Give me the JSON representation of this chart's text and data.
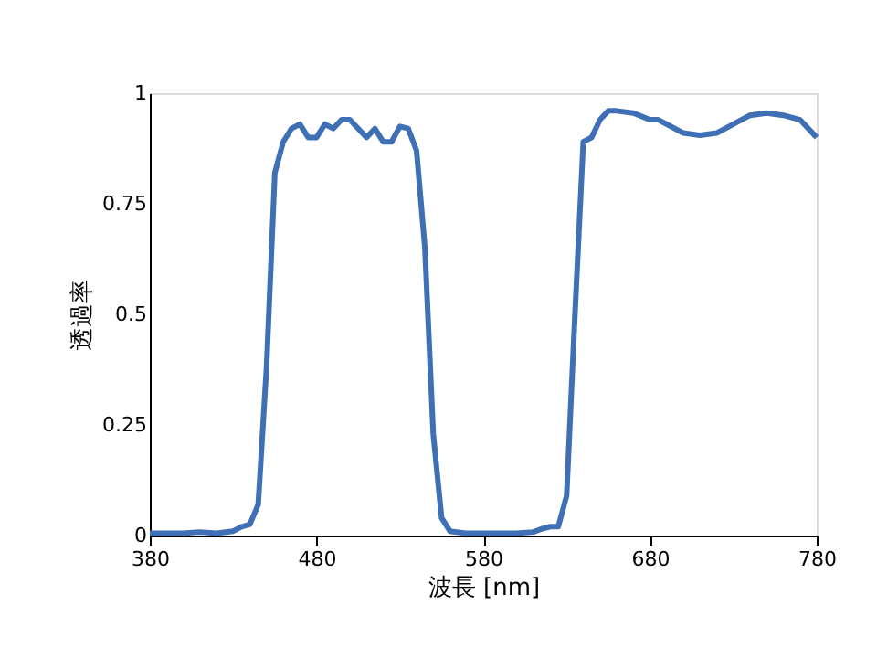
{
  "chart_data": {
    "type": "line",
    "xlabel": "波長 [nm]",
    "ylabel": "透過率",
    "x": [
      380,
      400,
      410,
      420,
      430,
      435,
      440,
      445,
      450,
      455,
      460,
      465,
      470,
      475,
      480,
      485,
      490,
      495,
      500,
      505,
      510,
      515,
      520,
      525,
      530,
      535,
      540,
      545,
      550,
      555,
      560,
      570,
      600,
      610,
      615,
      620,
      625,
      630,
      635,
      640,
      645,
      650,
      655,
      660,
      670,
      680,
      685,
      690,
      700,
      710,
      720,
      730,
      740,
      750,
      760,
      770,
      780
    ],
    "series": [
      {
        "color": "#3f6fb5",
        "values": [
          0.005,
          0.005,
          0.008,
          0.005,
          0.01,
          0.02,
          0.025,
          0.07,
          0.38,
          0.82,
          0.89,
          0.92,
          0.93,
          0.9,
          0.9,
          0.93,
          0.92,
          0.94,
          0.94,
          0.92,
          0.9,
          0.92,
          0.89,
          0.89,
          0.925,
          0.92,
          0.87,
          0.65,
          0.23,
          0.04,
          0.01,
          0.005,
          0.005,
          0.008,
          0.015,
          0.02,
          0.02,
          0.09,
          0.5,
          0.89,
          0.9,
          0.94,
          0.96,
          0.96,
          0.955,
          0.94,
          0.94,
          0.93,
          0.91,
          0.905,
          0.91,
          0.93,
          0.95,
          0.955,
          0.95,
          0.94,
          0.9
        ]
      }
    ],
    "xlim": [
      380,
      780
    ],
    "xticks": [
      380,
      480,
      580,
      680,
      780
    ],
    "ylim": [
      0,
      1
    ],
    "yticks": [
      0,
      0.25,
      0.5,
      0.75,
      1
    ],
    "grid": false,
    "legend": false,
    "marker": "none",
    "line_style": "solid"
  }
}
